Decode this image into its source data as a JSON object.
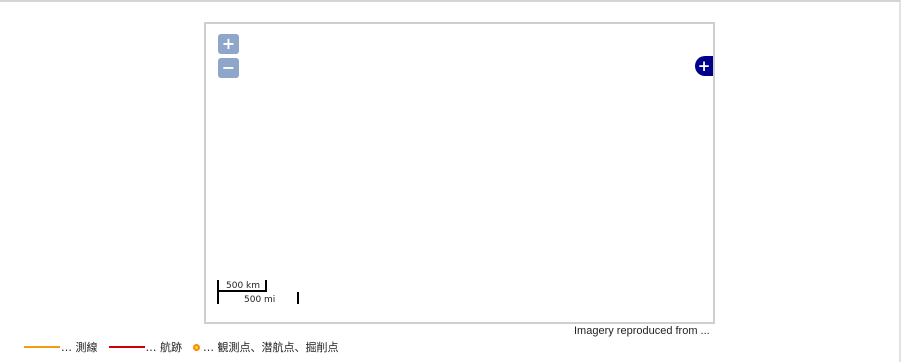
{
  "map": {
    "zoom_in_label": "+",
    "zoom_out_label": "−",
    "layer_switcher_label": "+",
    "scale_km": "500 km",
    "scale_mi": "500 mi",
    "attribution": "Imagery reproduced from ..."
  },
  "legend": {
    "items": [
      {
        "label": "… 測線",
        "color": "#f39c12",
        "icon": "orange-line"
      },
      {
        "label": "… 航跡",
        "color": "#cc0000",
        "icon": "red-line"
      },
      {
        "label": "… 観測点、潜航点、掘削点",
        "color": "#ff8c00",
        "fill": "#ffd24a",
        "icon": "orange-circle"
      }
    ]
  }
}
